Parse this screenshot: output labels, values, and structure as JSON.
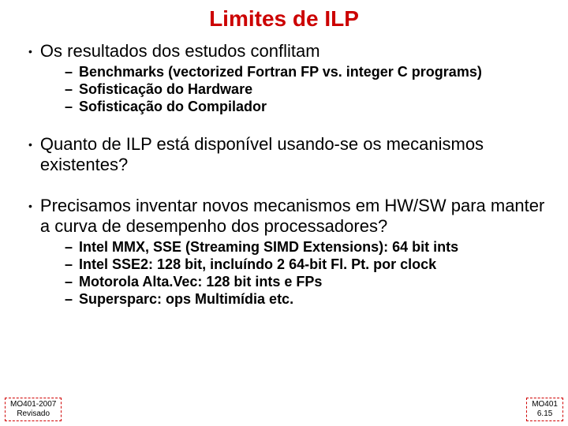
{
  "title": {
    "text": "Limites de ILP",
    "color": "#cc0000"
  },
  "bullets": [
    {
      "text": "Os resultados dos estudos conflitam",
      "subs": [
        "Benchmarks (vectorized Fortran FP vs. integer C programs)",
        "Sofisticação do Hardware",
        "Sofisticação do Compilador"
      ]
    },
    {
      "text": "Quanto de ILP está disponível usando-se os mecanismos existentes?",
      "subs": []
    },
    {
      "text": "Precisamos inventar novos mecanismos em HW/SW para manter a curva de  desempenho dos processadores?",
      "subs": [
        "Intel MMX, SSE (Streaming SIMD Extensions): 64 bit ints",
        "Intel SSE2: 128 bit, incluíndo 2 64-bit Fl. Pt. por clock",
        "Motorola Alta.Vec: 128 bit ints e FPs",
        "Supersparc: ops Multimídia  etc."
      ]
    }
  ],
  "footer": {
    "left_line1": "MO401-2007",
    "left_line2": "Revisado",
    "right_line1": "MO401",
    "right_line2": "6.15"
  },
  "colors": {
    "title": "#cc0000",
    "text": "#000000",
    "border": "#d00000",
    "background": "#ffffff"
  }
}
